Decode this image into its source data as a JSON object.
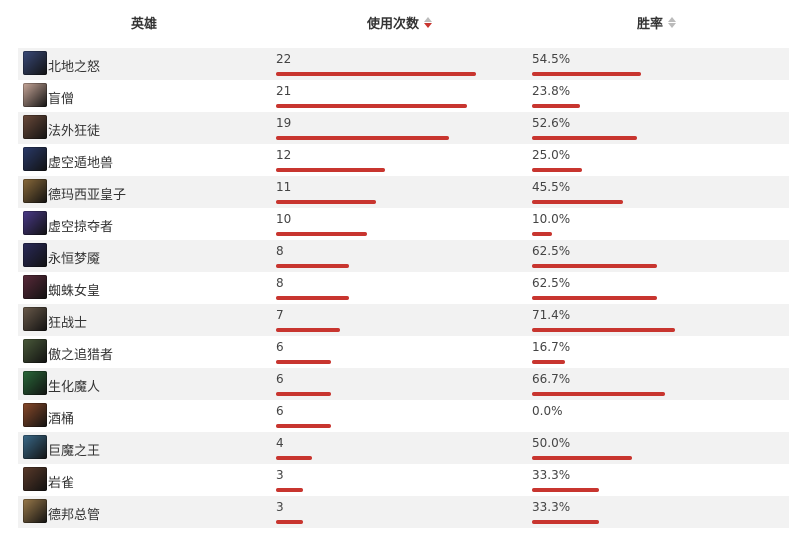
{
  "header": {
    "hero_label": "英雄",
    "usage_label": "使用次数",
    "winrate_label": "胜率"
  },
  "colors": {
    "bar": "#c8352f",
    "row_alt": "#f2f2f2"
  },
  "table_max_usage": 22,
  "rows": [
    {
      "name": "北地之怒",
      "usage": "22",
      "usage_value": 22,
      "winrate": "54.5%",
      "winrate_value": 54.5,
      "avatar": "#3a4a7a"
    },
    {
      "name": "盲僧",
      "usage": "21",
      "usage_value": 21,
      "winrate": "23.8%",
      "winrate_value": 23.8,
      "avatar": "#c9a89a"
    },
    {
      "name": "法外狂徒",
      "usage": "19",
      "usage_value": 19,
      "winrate": "52.6%",
      "winrate_value": 52.6,
      "avatar": "#6b4a3a"
    },
    {
      "name": "虚空遁地兽",
      "usage": "12",
      "usage_value": 12,
      "winrate": "25.0%",
      "winrate_value": 25.0,
      "avatar": "#2a3a6a"
    },
    {
      "name": "德玛西亚皇子",
      "usage": "11",
      "usage_value": 11,
      "winrate": "45.5%",
      "winrate_value": 45.5,
      "avatar": "#8a6a3a"
    },
    {
      "name": "虚空掠夺者",
      "usage": "10",
      "usage_value": 10,
      "winrate": "10.0%",
      "winrate_value": 10.0,
      "avatar": "#4a3a8a"
    },
    {
      "name": "永恒梦魇",
      "usage": "8",
      "usage_value": 8,
      "winrate": "62.5%",
      "winrate_value": 62.5,
      "avatar": "#2a2a5a"
    },
    {
      "name": "蜘蛛女皇",
      "usage": "8",
      "usage_value": 8,
      "winrate": "62.5%",
      "winrate_value": 62.5,
      "avatar": "#5a2a3a"
    },
    {
      "name": "狂战士",
      "usage": "7",
      "usage_value": 7,
      "winrate": "71.4%",
      "winrate_value": 71.4,
      "avatar": "#6a5a4a"
    },
    {
      "name": "傲之追猎者",
      "usage": "6",
      "usage_value": 6,
      "winrate": "16.7%",
      "winrate_value": 16.7,
      "avatar": "#4a5a3a"
    },
    {
      "name": "生化魔人",
      "usage": "6",
      "usage_value": 6,
      "winrate": "66.7%",
      "winrate_value": 66.7,
      "avatar": "#2a6a3a"
    },
    {
      "name": "酒桶",
      "usage": "6",
      "usage_value": 6,
      "winrate": "0.0%",
      "winrate_value": 0.0,
      "avatar": "#8a4a2a"
    },
    {
      "name": "巨魔之王",
      "usage": "4",
      "usage_value": 4,
      "winrate": "50.0%",
      "winrate_value": 50.0,
      "avatar": "#3a6a8a"
    },
    {
      "name": "岩雀",
      "usage": "3",
      "usage_value": 3,
      "winrate": "33.3%",
      "winrate_value": 33.3,
      "avatar": "#5a3a2a"
    },
    {
      "name": "德邦总管",
      "usage": "3",
      "usage_value": 3,
      "winrate": "33.3%",
      "winrate_value": 33.3,
      "avatar": "#9a7a4a"
    }
  ]
}
